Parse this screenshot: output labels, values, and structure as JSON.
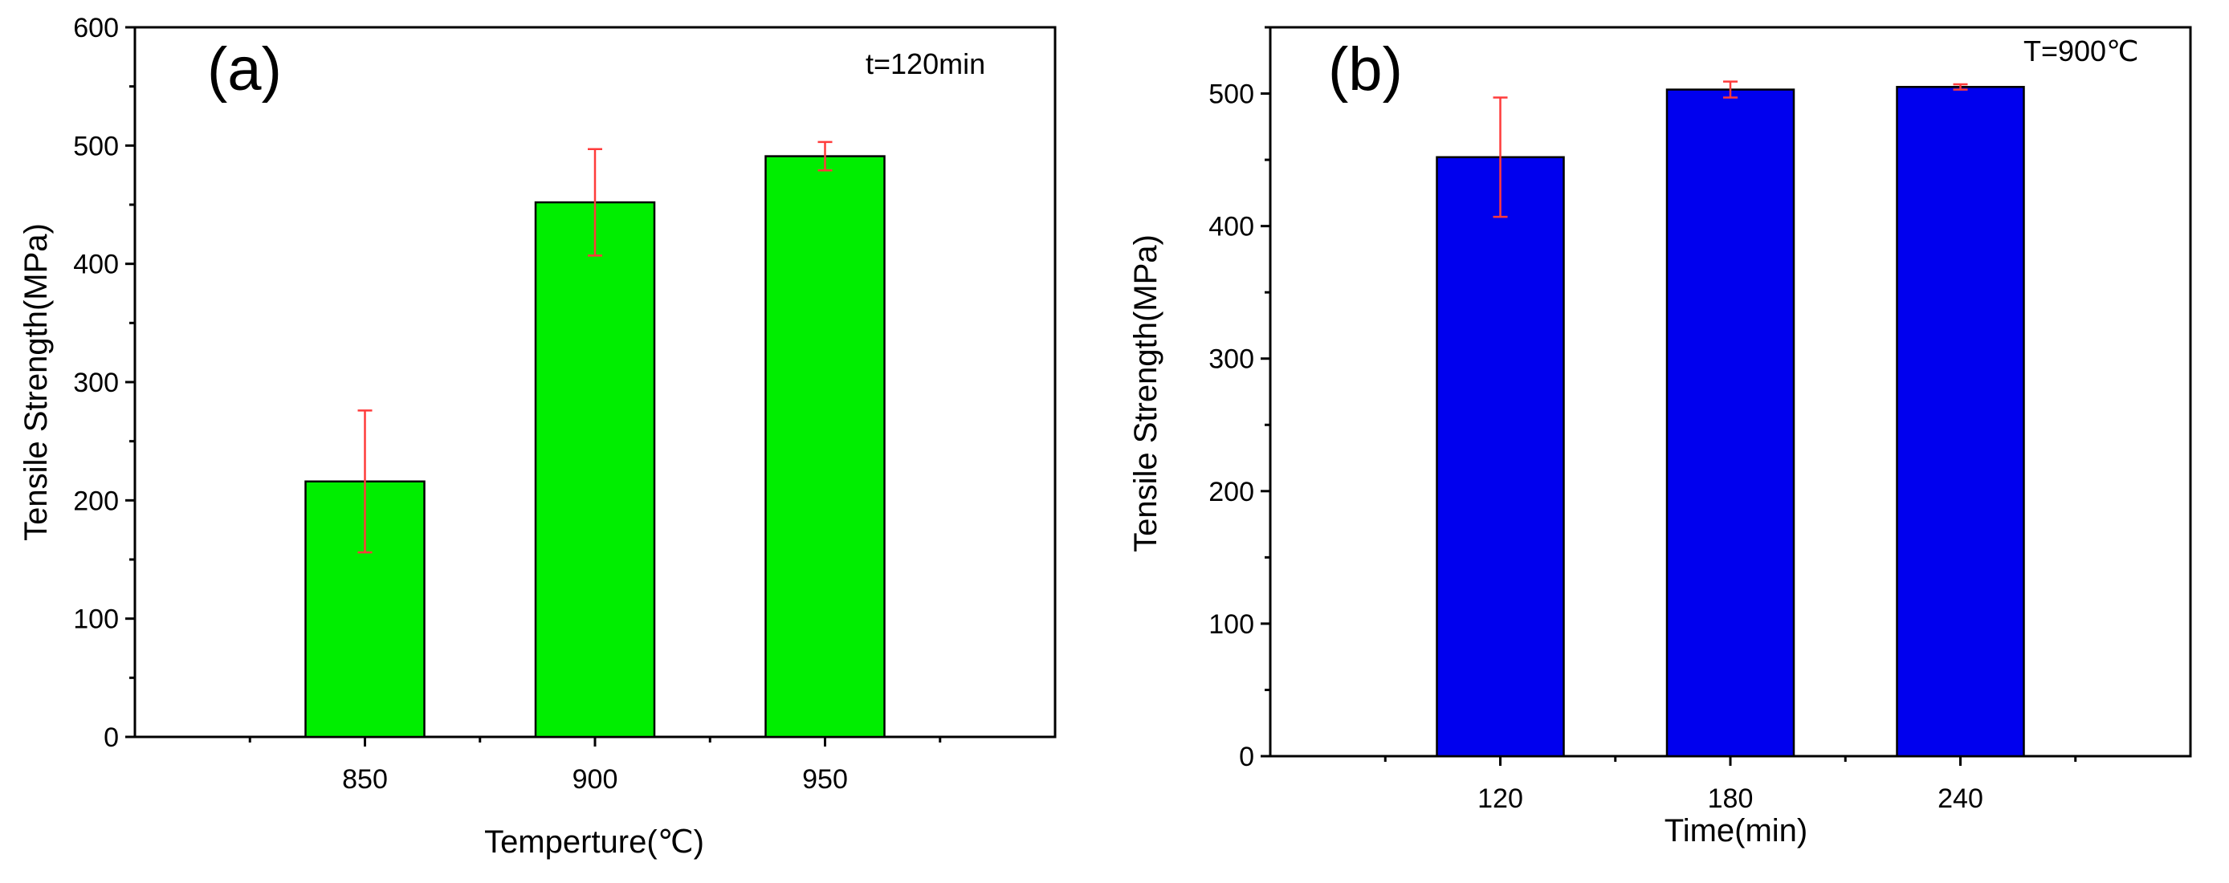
{
  "chart_data": [
    {
      "type": "bar",
      "panel_label": "(a)",
      "annotation": "t=120min",
      "categories": [
        "850",
        "900",
        "950"
      ],
      "values": [
        216,
        452,
        491
      ],
      "errors": [
        60,
        45,
        12
      ],
      "ylabel": "Tensile Strength(MPa)",
      "xlabel": "Temperture(℃)",
      "ylim": [
        0,
        600
      ],
      "yticks": [
        "0",
        "100",
        "200",
        "300",
        "400",
        "500",
        "600"
      ],
      "bar_color": "#00ee00",
      "error_color": "#ff3b3b"
    },
    {
      "type": "bar",
      "panel_label": "(b)",
      "annotation": "T=900℃",
      "categories": [
        "120",
        "180",
        "240"
      ],
      "values": [
        452,
        503,
        505
      ],
      "errors": [
        45,
        6,
        2
      ],
      "ylabel": "Tensile Strength(MPa)",
      "xlabel": "Time(min)",
      "ylim": [
        0,
        550
      ],
      "yticks": [
        "0",
        "100",
        "200",
        "300",
        "400",
        "500"
      ],
      "bar_color": "#0000ee",
      "error_color": "#ff3b3b"
    }
  ]
}
